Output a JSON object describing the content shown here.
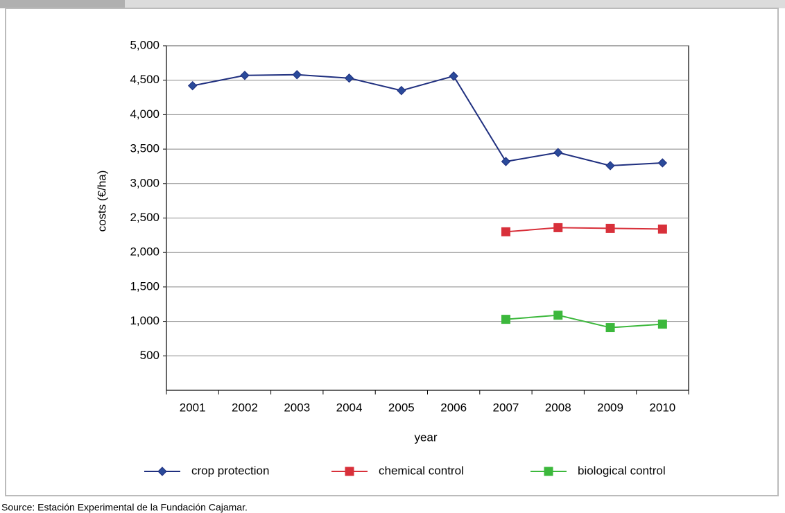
{
  "chart_data": {
    "type": "line",
    "y_label": "costs (€/ha)",
    "x_label": "year",
    "categories": [
      "2001",
      "2002",
      "2003",
      "2004",
      "2005",
      "2006",
      "2007",
      "2008",
      "2009",
      "2010"
    ],
    "series": [
      {
        "name": "crop protection",
        "color": "#1f2f7f",
        "marker": "diamond",
        "values": [
          4420,
          4570,
          4580,
          4530,
          4350,
          4560,
          3320,
          3450,
          3260,
          3300
        ]
      },
      {
        "name": "chemical control",
        "color": "#d8303a",
        "marker": "square",
        "values": [
          null,
          null,
          null,
          null,
          null,
          null,
          2300,
          2360,
          2350,
          2340
        ]
      },
      {
        "name": "biological control",
        "color": "#3cb83c",
        "marker": "square",
        "values": [
          null,
          null,
          null,
          null,
          null,
          null,
          1030,
          1090,
          910,
          960
        ]
      }
    ],
    "ylim": [
      0,
      5000
    ],
    "yticks": [
      500,
      {
        "value": 1000,
        "label": "1,000"
      },
      {
        "value": 1500,
        "label": "1,500"
      },
      {
        "value": 2000,
        "label": "2,000"
      },
      {
        "value": 2500,
        "label": "2,500"
      },
      {
        "value": 3000,
        "label": "3,000"
      },
      {
        "value": 3500,
        "label": "3,500"
      },
      {
        "value": 4000,
        "label": "4,000"
      },
      {
        "value": 4500,
        "label": "4,500"
      },
      {
        "value": 5000,
        "label": "5,000"
      }
    ],
    "grid": true,
    "legend": "bottom",
    "source": "Source: Estación Experimental de la Fundación Cajamar."
  }
}
